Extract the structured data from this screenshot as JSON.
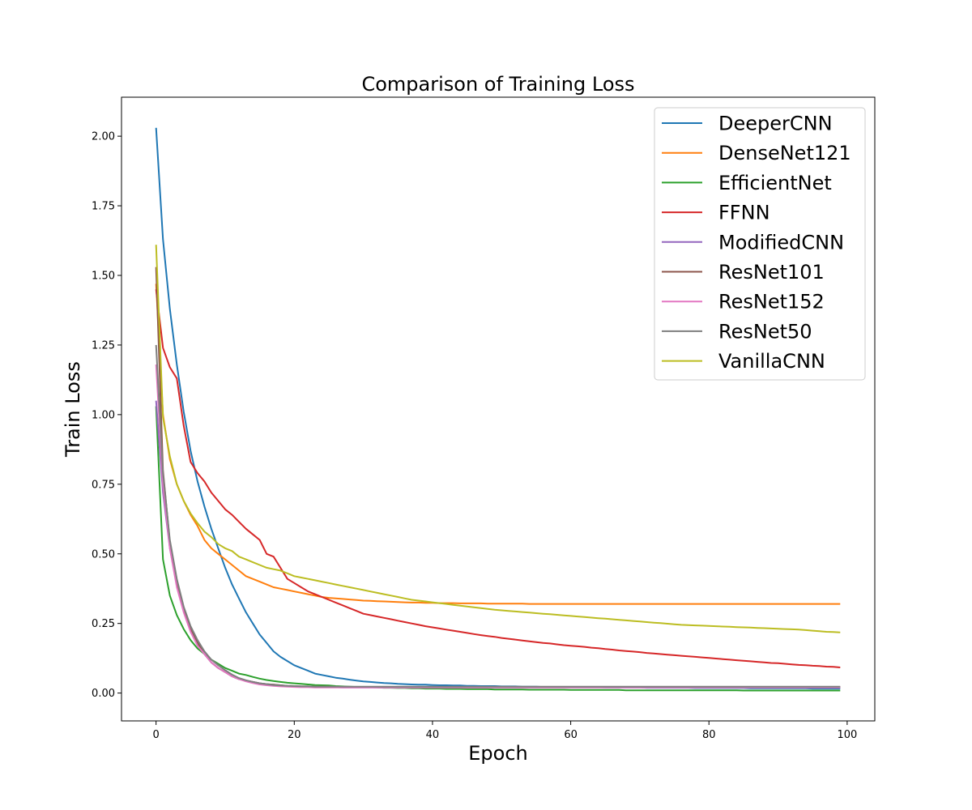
{
  "chart_data": {
    "type": "line",
    "title": "Comparison of Training Loss",
    "xlabel": "Epoch",
    "ylabel": "Train Loss",
    "xlim": [
      -5,
      104
    ],
    "ylim": [
      -0.1,
      2.14
    ],
    "xticks": [
      0,
      20,
      40,
      60,
      80,
      100
    ],
    "xtick_labels": [
      "0",
      "20",
      "40",
      "60",
      "80",
      "100"
    ],
    "yticks": [
      0,
      0.25,
      0.5,
      0.75,
      1.0,
      1.25,
      1.5,
      1.75,
      2.0
    ],
    "ytick_labels": [
      "0.00",
      "0.25",
      "0.50",
      "0.75",
      "1.00",
      "1.25",
      "1.50",
      "1.75",
      "2.00"
    ],
    "grid": false,
    "legend_position": "upper-right",
    "x": [
      0,
      1,
      2,
      3,
      4,
      5,
      6,
      7,
      8,
      9,
      10,
      11,
      12,
      13,
      14,
      15,
      16,
      17,
      18,
      19,
      20,
      21,
      22,
      23,
      24,
      25,
      26,
      27,
      28,
      29,
      30,
      31,
      32,
      33,
      34,
      35,
      36,
      37,
      38,
      39,
      40,
      41,
      42,
      43,
      44,
      45,
      46,
      47,
      48,
      49,
      50,
      51,
      52,
      53,
      54,
      55,
      56,
      57,
      58,
      59,
      60,
      61,
      62,
      63,
      64,
      65,
      66,
      67,
      68,
      69,
      70,
      71,
      72,
      73,
      74,
      75,
      76,
      77,
      78,
      79,
      80,
      81,
      82,
      83,
      84,
      85,
      86,
      87,
      88,
      89,
      90,
      91,
      92,
      93,
      94,
      95,
      96,
      97,
      98,
      99
    ],
    "series": [
      {
        "name": "DeeperCNN",
        "color": "#1f77b4",
        "values": [
          2.03,
          1.63,
          1.38,
          1.18,
          1.01,
          0.87,
          0.76,
          0.67,
          0.59,
          0.52,
          0.45,
          0.39,
          0.34,
          0.29,
          0.25,
          0.21,
          0.18,
          0.15,
          0.13,
          0.115,
          0.1,
          0.09,
          0.08,
          0.07,
          0.065,
          0.06,
          0.055,
          0.052,
          0.048,
          0.045,
          0.042,
          0.04,
          0.038,
          0.036,
          0.035,
          0.033,
          0.032,
          0.031,
          0.03,
          0.03,
          0.029,
          0.028,
          0.028,
          0.027,
          0.027,
          0.026,
          0.026,
          0.025,
          0.025,
          0.025,
          0.024,
          0.024,
          0.024,
          0.023,
          0.023,
          0.023,
          0.022,
          0.022,
          0.022,
          0.022,
          0.021,
          0.021,
          0.021,
          0.021,
          0.021,
          0.02,
          0.02,
          0.02,
          0.02,
          0.02,
          0.02,
          0.019,
          0.019,
          0.019,
          0.019,
          0.019,
          0.019,
          0.019,
          0.018,
          0.018,
          0.018,
          0.018,
          0.018,
          0.018,
          0.018,
          0.018,
          0.017,
          0.017,
          0.017,
          0.017,
          0.017,
          0.017,
          0.017,
          0.017,
          0.017,
          0.016,
          0.016,
          0.016,
          0.016,
          0.016
        ]
      },
      {
        "name": "DenseNet121",
        "color": "#ff7f0e",
        "values": [
          1.47,
          1.0,
          0.84,
          0.75,
          0.69,
          0.64,
          0.6,
          0.55,
          0.52,
          0.5,
          0.48,
          0.46,
          0.44,
          0.42,
          0.41,
          0.4,
          0.39,
          0.38,
          0.375,
          0.37,
          0.365,
          0.36,
          0.355,
          0.35,
          0.345,
          0.342,
          0.34,
          0.338,
          0.336,
          0.334,
          0.332,
          0.331,
          0.33,
          0.329,
          0.328,
          0.327,
          0.326,
          0.325,
          0.325,
          0.324,
          0.324,
          0.323,
          0.323,
          0.323,
          0.322,
          0.322,
          0.322,
          0.322,
          0.321,
          0.321,
          0.321,
          0.321,
          0.321,
          0.321,
          0.32,
          0.32,
          0.32,
          0.32,
          0.32,
          0.32,
          0.32,
          0.32,
          0.32,
          0.32,
          0.32,
          0.32,
          0.32,
          0.32,
          0.32,
          0.32,
          0.32,
          0.32,
          0.32,
          0.32,
          0.32,
          0.32,
          0.32,
          0.32,
          0.32,
          0.32,
          0.32,
          0.32,
          0.32,
          0.32,
          0.32,
          0.32,
          0.32,
          0.32,
          0.32,
          0.32,
          0.32,
          0.32,
          0.32,
          0.32,
          0.32,
          0.32,
          0.32,
          0.32,
          0.32,
          0.32
        ]
      },
      {
        "name": "EfficientNet",
        "color": "#2ca02c",
        "values": [
          1.03,
          0.48,
          0.35,
          0.28,
          0.23,
          0.19,
          0.16,
          0.14,
          0.12,
          0.105,
          0.09,
          0.08,
          0.07,
          0.065,
          0.058,
          0.052,
          0.047,
          0.043,
          0.04,
          0.037,
          0.035,
          0.033,
          0.031,
          0.029,
          0.028,
          0.027,
          0.025,
          0.024,
          0.023,
          0.022,
          0.021,
          0.021,
          0.02,
          0.019,
          0.019,
          0.018,
          0.018,
          0.017,
          0.017,
          0.016,
          0.016,
          0.016,
          0.015,
          0.015,
          0.015,
          0.014,
          0.014,
          0.014,
          0.014,
          0.013,
          0.013,
          0.013,
          0.013,
          0.013,
          0.012,
          0.012,
          0.012,
          0.012,
          0.012,
          0.012,
          0.011,
          0.011,
          0.011,
          0.011,
          0.011,
          0.011,
          0.011,
          0.011,
          0.01,
          0.01,
          0.01,
          0.01,
          0.01,
          0.01,
          0.01,
          0.01,
          0.01,
          0.01,
          0.01,
          0.01,
          0.01,
          0.01,
          0.01,
          0.01,
          0.01,
          0.009,
          0.009,
          0.009,
          0.009,
          0.009,
          0.009,
          0.009,
          0.009,
          0.009,
          0.009,
          0.009,
          0.009,
          0.009,
          0.009,
          0.009
        ]
      },
      {
        "name": "FFNN",
        "color": "#d62728",
        "values": [
          1.45,
          1.24,
          1.17,
          1.13,
          0.96,
          0.83,
          0.79,
          0.76,
          0.72,
          0.69,
          0.66,
          0.64,
          0.615,
          0.59,
          0.57,
          0.55,
          0.5,
          0.49,
          0.45,
          0.41,
          0.395,
          0.38,
          0.365,
          0.355,
          0.345,
          0.335,
          0.325,
          0.315,
          0.305,
          0.295,
          0.285,
          0.28,
          0.275,
          0.27,
          0.265,
          0.26,
          0.255,
          0.25,
          0.245,
          0.24,
          0.236,
          0.232,
          0.228,
          0.224,
          0.22,
          0.216,
          0.212,
          0.208,
          0.205,
          0.202,
          0.198,
          0.195,
          0.192,
          0.189,
          0.186,
          0.183,
          0.18,
          0.178,
          0.175,
          0.172,
          0.17,
          0.168,
          0.166,
          0.163,
          0.161,
          0.158,
          0.156,
          0.153,
          0.151,
          0.149,
          0.147,
          0.144,
          0.142,
          0.14,
          0.138,
          0.136,
          0.134,
          0.132,
          0.13,
          0.128,
          0.126,
          0.124,
          0.122,
          0.12,
          0.118,
          0.116,
          0.114,
          0.112,
          0.11,
          0.108,
          0.107,
          0.105,
          0.103,
          0.101,
          0.1,
          0.098,
          0.097,
          0.095,
          0.094,
          0.092
        ]
      },
      {
        "name": "ModifiedCNN",
        "color": "#9467bd",
        "values": [
          1.05,
          0.72,
          0.52,
          0.39,
          0.3,
          0.23,
          0.18,
          0.14,
          0.11,
          0.09,
          0.075,
          0.06,
          0.05,
          0.045,
          0.04,
          0.035,
          0.032,
          0.03,
          0.028,
          0.026,
          0.025,
          0.024,
          0.023,
          0.022,
          0.022,
          0.021,
          0.021,
          0.02,
          0.02,
          0.02,
          0.02,
          0.02,
          0.02,
          0.02,
          0.02,
          0.02,
          0.02,
          0.02,
          0.02,
          0.02,
          0.02,
          0.02,
          0.02,
          0.02,
          0.02,
          0.02,
          0.02,
          0.02,
          0.02,
          0.02,
          0.02,
          0.02,
          0.02,
          0.02,
          0.02,
          0.02,
          0.02,
          0.02,
          0.02,
          0.02,
          0.02,
          0.02,
          0.02,
          0.02,
          0.02,
          0.02,
          0.02,
          0.02,
          0.02,
          0.02,
          0.02,
          0.02,
          0.02,
          0.02,
          0.02,
          0.02,
          0.02,
          0.02,
          0.02,
          0.02,
          0.02,
          0.02,
          0.02,
          0.02,
          0.02,
          0.02,
          0.02,
          0.02,
          0.02,
          0.02,
          0.02,
          0.02,
          0.02,
          0.02,
          0.02,
          0.02,
          0.02,
          0.02,
          0.02,
          0.02
        ]
      },
      {
        "name": "ResNet101",
        "color": "#8c564b",
        "values": [
          1.53,
          0.8,
          0.54,
          0.4,
          0.3,
          0.23,
          0.18,
          0.14,
          0.11,
          0.09,
          0.075,
          0.06,
          0.05,
          0.045,
          0.04,
          0.035,
          0.032,
          0.03,
          0.028,
          0.026,
          0.025,
          0.024,
          0.024,
          0.023,
          0.023,
          0.023,
          0.022,
          0.022,
          0.022,
          0.022,
          0.022,
          0.022,
          0.022,
          0.022,
          0.022,
          0.022,
          0.022,
          0.022,
          0.022,
          0.022,
          0.022,
          0.022,
          0.022,
          0.022,
          0.022,
          0.022,
          0.022,
          0.022,
          0.022,
          0.022,
          0.022,
          0.022,
          0.022,
          0.022,
          0.022,
          0.022,
          0.022,
          0.022,
          0.022,
          0.022,
          0.022,
          0.022,
          0.022,
          0.022,
          0.022,
          0.022,
          0.022,
          0.022,
          0.022,
          0.022,
          0.022,
          0.022,
          0.022,
          0.022,
          0.022,
          0.022,
          0.022,
          0.022,
          0.022,
          0.022,
          0.022,
          0.022,
          0.022,
          0.022,
          0.022,
          0.022,
          0.022,
          0.022,
          0.022,
          0.022,
          0.022,
          0.022,
          0.022,
          0.022,
          0.022,
          0.022,
          0.022,
          0.022,
          0.022,
          0.022
        ]
      },
      {
        "name": "ResNet152",
        "color": "#e377c2",
        "values": [
          1.18,
          0.75,
          0.52,
          0.38,
          0.29,
          0.22,
          0.17,
          0.14,
          0.11,
          0.09,
          0.075,
          0.06,
          0.05,
          0.042,
          0.036,
          0.031,
          0.028,
          0.026,
          0.024,
          0.023,
          0.022,
          0.021,
          0.021,
          0.02,
          0.02,
          0.02,
          0.02,
          0.02,
          0.02,
          0.02,
          0.02,
          0.02,
          0.02,
          0.02,
          0.02,
          0.02,
          0.02,
          0.02,
          0.02,
          0.02,
          0.02,
          0.02,
          0.02,
          0.02,
          0.02,
          0.02,
          0.02,
          0.02,
          0.02,
          0.02,
          0.02,
          0.02,
          0.02,
          0.02,
          0.02,
          0.02,
          0.02,
          0.02,
          0.02,
          0.02,
          0.02,
          0.02,
          0.02,
          0.02,
          0.02,
          0.02,
          0.02,
          0.02,
          0.02,
          0.02,
          0.02,
          0.02,
          0.02,
          0.02,
          0.02,
          0.02,
          0.02,
          0.02,
          0.02,
          0.02,
          0.02,
          0.02,
          0.02,
          0.02,
          0.02,
          0.02,
          0.02,
          0.02,
          0.02,
          0.02,
          0.02,
          0.02,
          0.02,
          0.02,
          0.02,
          0.02,
          0.02,
          0.02,
          0.02,
          0.02
        ]
      },
      {
        "name": "ResNet50",
        "color": "#7f7f7f",
        "values": [
          1.25,
          0.79,
          0.55,
          0.41,
          0.31,
          0.24,
          0.19,
          0.15,
          0.12,
          0.1,
          0.082,
          0.066,
          0.054,
          0.046,
          0.04,
          0.035,
          0.032,
          0.029,
          0.027,
          0.026,
          0.025,
          0.024,
          0.024,
          0.023,
          0.023,
          0.023,
          0.023,
          0.023,
          0.023,
          0.023,
          0.023,
          0.023,
          0.023,
          0.023,
          0.023,
          0.023,
          0.023,
          0.023,
          0.023,
          0.023,
          0.023,
          0.023,
          0.023,
          0.023,
          0.023,
          0.023,
          0.023,
          0.023,
          0.023,
          0.023,
          0.023,
          0.023,
          0.023,
          0.023,
          0.023,
          0.023,
          0.023,
          0.023,
          0.023,
          0.023,
          0.023,
          0.023,
          0.023,
          0.023,
          0.023,
          0.023,
          0.023,
          0.023,
          0.023,
          0.023,
          0.023,
          0.023,
          0.023,
          0.023,
          0.023,
          0.023,
          0.023,
          0.023,
          0.023,
          0.023,
          0.023,
          0.023,
          0.023,
          0.023,
          0.023,
          0.023,
          0.023,
          0.023,
          0.023,
          0.023,
          0.023,
          0.023,
          0.023,
          0.023,
          0.023,
          0.023,
          0.023,
          0.023,
          0.023,
          0.023
        ]
      },
      {
        "name": "VanillaCNN",
        "color": "#bcbd22",
        "values": [
          1.61,
          0.99,
          0.85,
          0.75,
          0.69,
          0.645,
          0.61,
          0.58,
          0.56,
          0.535,
          0.52,
          0.51,
          0.49,
          0.48,
          0.47,
          0.46,
          0.45,
          0.445,
          0.44,
          0.43,
          0.42,
          0.415,
          0.41,
          0.405,
          0.4,
          0.395,
          0.39,
          0.385,
          0.38,
          0.375,
          0.37,
          0.365,
          0.36,
          0.355,
          0.35,
          0.345,
          0.34,
          0.335,
          0.332,
          0.329,
          0.326,
          0.323,
          0.32,
          0.317,
          0.314,
          0.311,
          0.308,
          0.305,
          0.302,
          0.299,
          0.297,
          0.295,
          0.293,
          0.291,
          0.289,
          0.287,
          0.285,
          0.283,
          0.281,
          0.279,
          0.277,
          0.275,
          0.273,
          0.271,
          0.269,
          0.267,
          0.265,
          0.263,
          0.261,
          0.259,
          0.257,
          0.255,
          0.253,
          0.251,
          0.249,
          0.247,
          0.245,
          0.244,
          0.243,
          0.242,
          0.241,
          0.24,
          0.239,
          0.238,
          0.237,
          0.236,
          0.235,
          0.234,
          0.233,
          0.232,
          0.231,
          0.23,
          0.229,
          0.228,
          0.226,
          0.224,
          0.222,
          0.22,
          0.219,
          0.218
        ]
      }
    ]
  }
}
